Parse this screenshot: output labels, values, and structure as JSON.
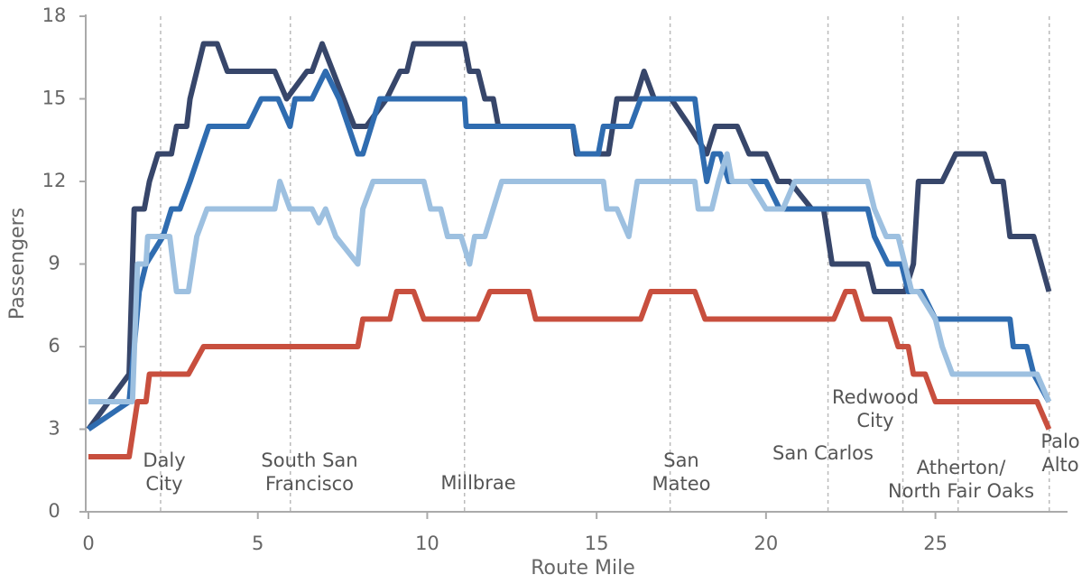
{
  "chart_data": {
    "type": "line",
    "x_label": "Route Mile",
    "y_label": "Passengers",
    "xlim": [
      0,
      28.9
    ],
    "xticks": [
      0,
      5,
      10,
      15,
      20,
      25
    ],
    "ylim": [
      0,
      18
    ],
    "yticks": [
      0,
      3,
      6,
      9,
      12,
      15,
      18
    ],
    "stations": [
      {
        "mile": 2.13,
        "label": [
          "Daly",
          "City"
        ]
      },
      {
        "mile": 5.96,
        "label": [
          "South San",
          "Francisco"
        ]
      },
      {
        "mile": 11.1,
        "label": [
          "Millbrae"
        ]
      },
      {
        "mile": 17.17,
        "label": [
          "San",
          "Mateo"
        ]
      },
      {
        "mile": 21.83,
        "label": [
          "San Carlos"
        ]
      },
      {
        "mile": 24.04,
        "label": [
          "Redwood",
          "City"
        ]
      },
      {
        "mile": 25.67,
        "label": [
          "Atherton/",
          "North Fair Oaks"
        ]
      },
      {
        "mile": 28.36,
        "label": [
          "Palo",
          "Alto"
        ]
      }
    ],
    "series": [
      {
        "color": "#37466a",
        "x": [
          0,
          1.2,
          1.35,
          1.65,
          1.8,
          2.05,
          2.45,
          2.6,
          2.9,
          3.0,
          3.4,
          3.8,
          4.1,
          5.5,
          5.85,
          6.45,
          6.6,
          6.9,
          7.85,
          8.2,
          8.8,
          9.2,
          9.4,
          9.6,
          11.1,
          11.25,
          11.5,
          11.7,
          11.95,
          12.1,
          14.3,
          14.4,
          15.35,
          15.6,
          16.15,
          16.4,
          16.7,
          17.2,
          17.75,
          18.25,
          18.5,
          19.15,
          19.5,
          20.0,
          20.35,
          20.7,
          21.35,
          21.7,
          21.95,
          23.0,
          23.2,
          24.1,
          24.35,
          24.5,
          25.2,
          25.6,
          26.45,
          26.7,
          27.0,
          27.2,
          27.9,
          28.35
        ],
        "values": [
          3,
          5,
          11,
          11,
          12,
          13,
          13,
          14,
          14,
          15,
          17,
          17,
          16,
          16,
          15,
          16,
          16,
          17,
          14,
          14,
          15,
          16,
          16,
          17,
          17,
          16,
          16,
          15,
          15,
          14,
          14,
          13,
          13,
          15,
          15,
          16,
          15,
          15,
          14,
          13,
          14,
          14,
          13,
          13,
          12,
          12,
          11,
          11,
          9,
          9,
          8,
          8,
          9,
          12,
          12,
          13,
          13,
          12,
          12,
          10,
          10,
          8
        ]
      },
      {
        "color": "#2f6cb0",
        "x": [
          0,
          1.2,
          1.5,
          1.7,
          2.2,
          2.45,
          2.7,
          3.0,
          3.55,
          4.7,
          5.1,
          5.6,
          5.95,
          6.1,
          6.6,
          7.0,
          7.4,
          7.95,
          8.1,
          8.6,
          11.1,
          11.15,
          14.3,
          14.45,
          15.05,
          15.2,
          16.0,
          16.3,
          17.9,
          18.0,
          18.25,
          18.45,
          18.65,
          18.9,
          20.0,
          20.4,
          23.0,
          23.2,
          23.6,
          24.0,
          24.2,
          24.6,
          25.0,
          27.2,
          27.3,
          27.7,
          27.9,
          28.35
        ],
        "values": [
          3,
          4,
          8,
          9,
          10,
          11,
          11,
          12,
          14,
          14,
          15,
          15,
          14,
          15,
          15,
          16,
          15,
          13,
          13,
          15,
          15,
          14,
          14,
          13,
          13,
          14,
          14,
          15,
          15,
          14,
          12,
          13,
          13,
          12,
          12,
          11,
          11,
          10,
          9,
          9,
          8,
          8,
          7,
          7,
          6,
          6,
          5,
          4
        ]
      },
      {
        "color": "#9dc0e0",
        "x": [
          0,
          1.3,
          1.45,
          1.7,
          1.75,
          2.4,
          2.6,
          2.95,
          3.2,
          3.5,
          5.5,
          5.65,
          5.95,
          6.6,
          6.8,
          7.0,
          7.3,
          7.95,
          8.1,
          8.4,
          9.9,
          10.1,
          10.4,
          10.6,
          11.0,
          11.25,
          11.4,
          11.7,
          11.95,
          12.2,
          15.2,
          15.3,
          15.6,
          15.95,
          16.2,
          17.9,
          18.0,
          18.4,
          18.6,
          18.85,
          19.0,
          19.5,
          20.0,
          20.5,
          20.85,
          23.0,
          23.2,
          23.55,
          23.9,
          24.3,
          24.5,
          25.0,
          25.2,
          25.5,
          28.0,
          28.35
        ],
        "values": [
          4,
          4,
          9,
          9,
          10,
          10,
          8,
          8,
          10,
          11,
          11,
          12,
          11,
          11,
          10.5,
          11,
          10,
          9,
          11,
          12,
          12,
          11,
          11,
          10,
          10,
          9,
          10,
          10,
          11,
          12,
          12,
          11,
          11,
          10,
          12,
          12,
          11,
          11,
          12,
          13,
          12,
          12,
          11,
          11,
          12,
          12,
          11,
          10,
          10,
          8,
          8,
          7,
          6,
          5,
          5,
          4
        ]
      },
      {
        "color": "#c84f3e",
        "x": [
          0,
          1.2,
          1.45,
          1.7,
          1.8,
          2.95,
          3.4,
          7.95,
          8.1,
          8.9,
          9.1,
          9.6,
          9.9,
          11.5,
          11.85,
          13.0,
          13.2,
          16.3,
          16.6,
          17.9,
          18.2,
          22.0,
          22.35,
          22.6,
          22.85,
          23.65,
          23.9,
          24.2,
          24.35,
          24.7,
          25.0,
          28.0,
          28.35
        ],
        "values": [
          2,
          2,
          4,
          4,
          5,
          5,
          6,
          6,
          7,
          7,
          8,
          8,
          7,
          7,
          8,
          8,
          7,
          7,
          8,
          8,
          7,
          7,
          8,
          8,
          7,
          7,
          6,
          6,
          5,
          5,
          4,
          4,
          3
        ]
      }
    ]
  }
}
